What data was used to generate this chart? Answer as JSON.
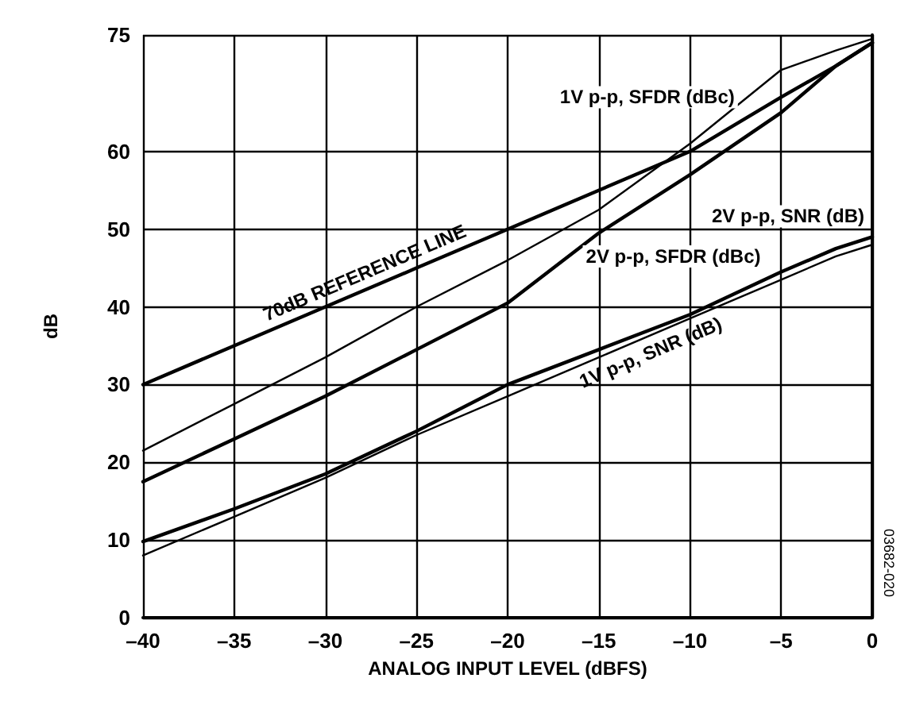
{
  "chart_data": {
    "type": "line",
    "xlabel": "ANALOG INPUT LEVEL (dBFS)",
    "ylabel": "dB",
    "x": [
      -40,
      -35,
      -30,
      -25,
      -20,
      -15,
      -10,
      -5,
      -2,
      0
    ],
    "series": [
      {
        "name": "70dB REFERENCE LINE",
        "color": "#000000",
        "values": [
          30,
          35,
          40,
          45,
          50,
          55,
          60,
          67,
          71,
          74
        ]
      },
      {
        "name": "1V p-p, SFDR (dBc)",
        "color": "#000000",
        "values": [
          21.5,
          27.5,
          33.5,
          40,
          46,
          52.5,
          61,
          70.5,
          73,
          74.5
        ]
      },
      {
        "name": "2V p-p, SFDR (dBc)",
        "color": "#000000",
        "values": [
          17.5,
          23,
          28.5,
          34.5,
          40.5,
          49.5,
          57,
          65,
          71,
          74
        ]
      },
      {
        "name": "2V p-p, SNR (dB)",
        "color": "#000000",
        "values": [
          9.8,
          14,
          18.5,
          24,
          30,
          34.5,
          39,
          44.5,
          47.5,
          49
        ]
      },
      {
        "name": "1V p-p, SNR (dB)",
        "color": "#000000",
        "values": [
          8,
          13,
          18,
          23.5,
          28.5,
          33.5,
          38.5,
          43.5,
          46.5,
          48
        ]
      }
    ],
    "xlim": [
      -40,
      0
    ],
    "xticks": [
      {
        "value": -40,
        "label": "–40"
      },
      {
        "value": -35,
        "label": "–35"
      },
      {
        "value": -30,
        "label": "–30"
      },
      {
        "value": -25,
        "label": "–25"
      },
      {
        "value": -20,
        "label": "–20"
      },
      {
        "value": -15,
        "label": "–15"
      },
      {
        "value": -10,
        "label": "–10"
      },
      {
        "value": -5,
        "label": "–5"
      },
      0
    ],
    "ylim": [
      0,
      75
    ],
    "yticks": [
      0,
      10,
      20,
      30,
      40,
      50,
      60,
      75
    ],
    "grid": true,
    "legend": false,
    "marker": "none",
    "line_style": "solid",
    "annotations": [
      "03682-020"
    ]
  }
}
